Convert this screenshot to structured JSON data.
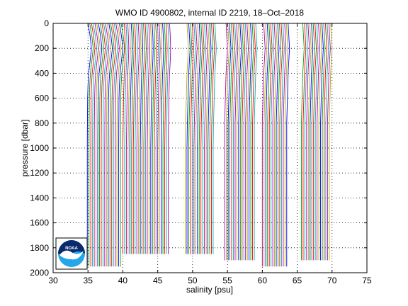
{
  "chart_data": {
    "type": "line",
    "title": "WMO ID 4900802, internal ID 2219, 18–Oct–2018",
    "xlabel": "salinity [psu]",
    "ylabel": "pressure [dbar]",
    "xlim": [
      30,
      75
    ],
    "ylim": [
      0,
      2000
    ],
    "y_reversed": true,
    "grid": true,
    "grid_style": "dotted",
    "x_ticks": [
      30,
      35,
      40,
      45,
      50,
      55,
      60,
      65,
      70,
      75
    ],
    "y_ticks": [
      0,
      200,
      400,
      600,
      800,
      1000,
      1200,
      1400,
      1600,
      1800,
      2000
    ],
    "profile_offset_psu": 0.25,
    "profile_colors": [
      "#0000ff",
      "#00a000",
      "#ff0000",
      "#00b0b0",
      "#b000b0",
      "#b0b000"
    ],
    "series": [
      {
        "start_x": 35.0,
        "count": 20,
        "max_pressure": 1950,
        "profile": [
          [
            0,
            35.0
          ],
          [
            100,
            35.3
          ],
          [
            200,
            35.5
          ],
          [
            300,
            35.3
          ],
          [
            400,
            35.1
          ],
          [
            500,
            35.0
          ],
          [
            600,
            34.95
          ],
          [
            800,
            34.92
          ],
          [
            1000,
            34.9
          ],
          [
            1200,
            34.9
          ],
          [
            1500,
            34.9
          ],
          [
            1950,
            34.9
          ]
        ]
      },
      {
        "start_x": 40.2,
        "count": 27,
        "max_pressure": 1850,
        "profile": [
          [
            0,
            40.2
          ],
          [
            100,
            40.3
          ],
          [
            200,
            40.35
          ],
          [
            300,
            40.3
          ],
          [
            400,
            40.2
          ],
          [
            600,
            40.1
          ],
          [
            800,
            40.05
          ],
          [
            1000,
            40.0
          ],
          [
            1300,
            40.0
          ],
          [
            1850,
            40.0
          ]
        ]
      },
      {
        "start_x": 49.2,
        "count": 17,
        "max_pressure": 1850,
        "profile": [
          [
            0,
            49.2
          ],
          [
            100,
            49.3
          ],
          [
            200,
            49.4
          ],
          [
            300,
            49.3
          ],
          [
            400,
            49.2
          ],
          [
            600,
            49.1
          ],
          [
            800,
            49.0
          ],
          [
            1000,
            48.95
          ],
          [
            1300,
            48.95
          ],
          [
            1850,
            48.95
          ]
        ]
      },
      {
        "start_x": 54.8,
        "count": 18,
        "max_pressure": 1900,
        "profile": [
          [
            0,
            54.8
          ],
          [
            100,
            54.9
          ],
          [
            200,
            55.0
          ],
          [
            300,
            54.9
          ],
          [
            400,
            54.8
          ],
          [
            600,
            54.7
          ],
          [
            800,
            54.6
          ],
          [
            1000,
            54.6
          ],
          [
            1300,
            54.6
          ],
          [
            1900,
            54.6
          ]
        ]
      },
      {
        "start_x": 60.2,
        "count": 15,
        "max_pressure": 1950,
        "profile": [
          [
            0,
            60.2
          ],
          [
            100,
            60.3
          ],
          [
            200,
            60.4
          ],
          [
            300,
            60.3
          ],
          [
            400,
            60.2
          ],
          [
            600,
            60.1
          ],
          [
            800,
            60.0
          ],
          [
            1000,
            60.0
          ],
          [
            1300,
            60.0
          ],
          [
            1950,
            60.0
          ]
        ]
      },
      {
        "start_x": 65.8,
        "count": 17,
        "max_pressure": 1900,
        "profile": [
          [
            0,
            65.8
          ],
          [
            100,
            65.9
          ],
          [
            200,
            66.0
          ],
          [
            300,
            65.9
          ],
          [
            400,
            65.8
          ],
          [
            600,
            65.7
          ],
          [
            800,
            65.6
          ],
          [
            1000,
            65.6
          ],
          [
            1300,
            65.6
          ],
          [
            1900,
            65.6
          ]
        ]
      }
    ]
  },
  "logo": {
    "name": "noaa-logo",
    "text": "NOAA",
    "colors": {
      "top": "#0a2a6e",
      "bottom": "#23a7e8",
      "bird": "#ffffff"
    }
  }
}
